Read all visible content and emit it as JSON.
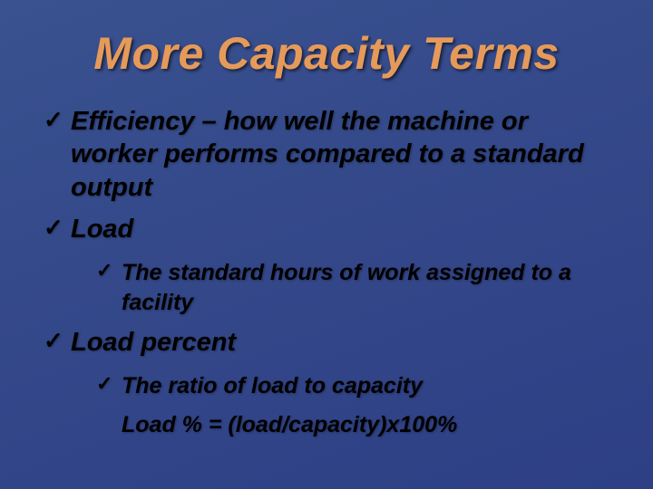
{
  "background": {
    "gradient_from": "#3a5290",
    "gradient_mid": "#34498a",
    "gradient_to": "#2e3f85"
  },
  "title": {
    "text": "More Capacity Terms",
    "color": "#e69a5a",
    "fontsize": 50,
    "italic": true,
    "bold": true
  },
  "bullets": [
    {
      "text": "Efficiency – how well the machine or worker performs compared to a standard output",
      "children": []
    },
    {
      "text": "Load",
      "children": [
        {
          "text": "The standard hours of work assigned to a facility",
          "check": true
        }
      ]
    },
    {
      "text": "Load percent",
      "children": [
        {
          "text": "The ratio of load to capacity",
          "check": true
        },
        {
          "text": "Load % = (load/capacity)x100%",
          "check": false
        }
      ]
    }
  ],
  "text_color": "#000000",
  "checkmark_color": "#000000",
  "body_fontsize_level1": 29,
  "body_fontsize_level2": 25
}
